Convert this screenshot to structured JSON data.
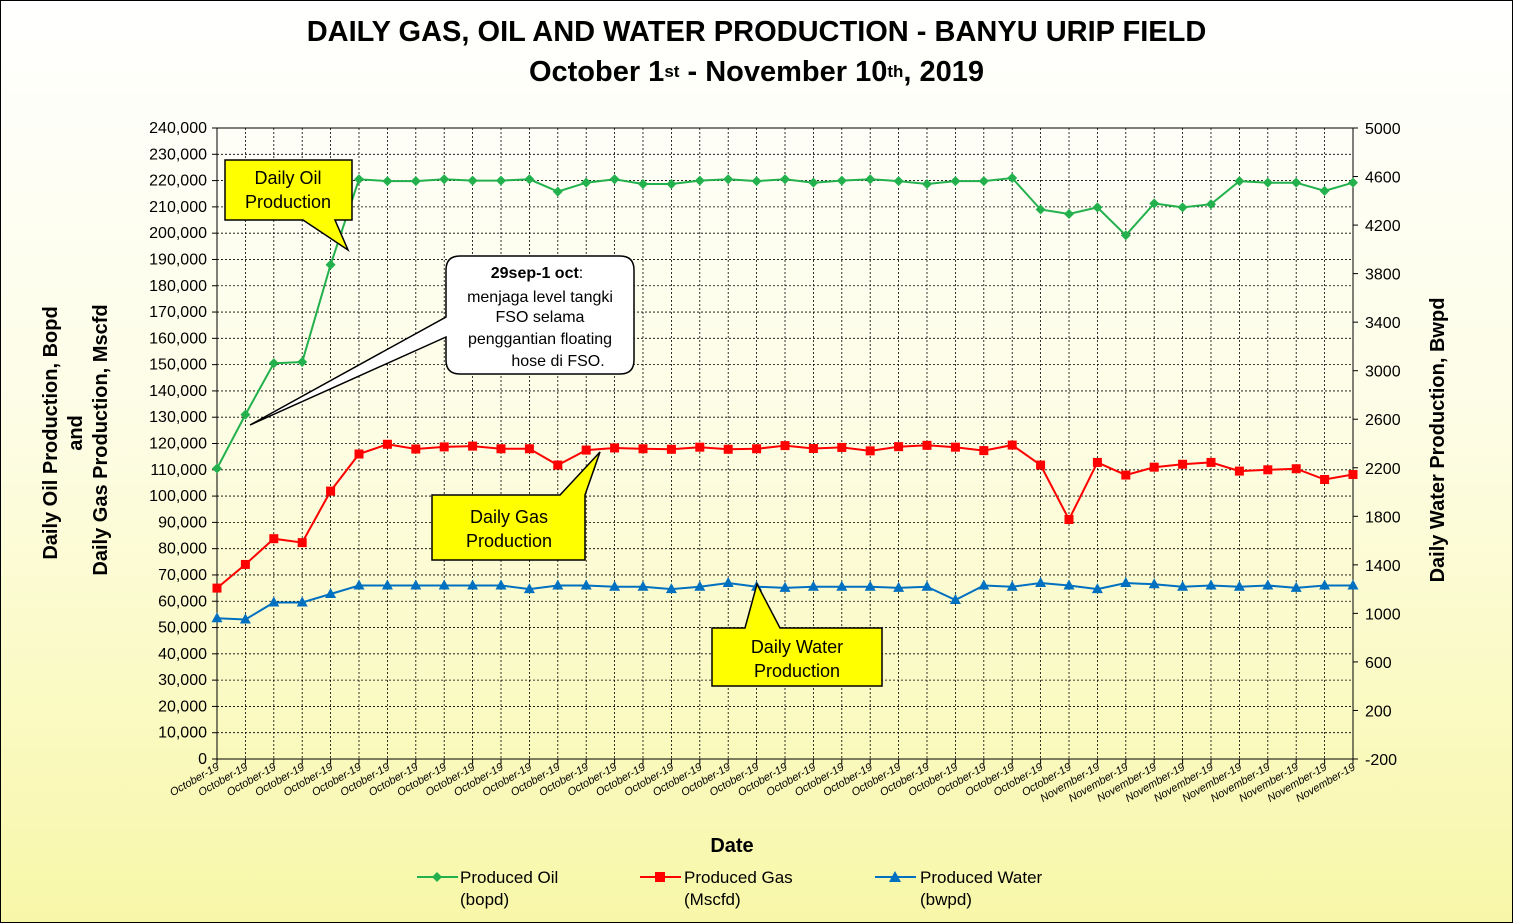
{
  "title": {
    "line1": "DAILY  GAS, OIL AND WATER PRODUCTION - BANYU URIP FIELD",
    "line2_pre": "October 1",
    "line2_sup1": "st",
    "line2_mid": " - November 10",
    "line2_sup2": "th",
    "line2_post": ", 2019"
  },
  "chart_data": {
    "type": "line",
    "xlabel": "Date",
    "ylabel_left_line1": "Daily Oil Production, Bopd",
    "ylabel_left_line2": "and",
    "ylabel_left_line3": "Daily Gas Production, Mscfd",
    "ylabel_right": "Daily Water  Production, Bwpd",
    "ylim_left": [
      0,
      240000
    ],
    "ylim_right": [
      -200,
      5000
    ],
    "left_ticks": [
      "0",
      "10,000",
      "20,000",
      "30,000",
      "40,000",
      "50,000",
      "60,000",
      "70,000",
      "80,000",
      "90,000",
      "100,000",
      "110,000",
      "120,000",
      "130,000",
      "140,000",
      "150,000",
      "160,000",
      "170,000",
      "180,000",
      "190,000",
      "200,000",
      "210,000",
      "220,000",
      "230,000",
      "240,000"
    ],
    "right_ticks": [
      "-200",
      "200",
      "600",
      "1000",
      "1400",
      "1800",
      "2200",
      "2600",
      "3000",
      "3400",
      "3800",
      "4200",
      "4600",
      "5000"
    ],
    "grid": true,
    "legend_position": "bottom",
    "categories": [
      "October-19",
      "October-19",
      "October-19",
      "October-19",
      "October-19",
      "October-19",
      "October-19",
      "October-19",
      "October-19",
      "October-19",
      "October-19",
      "October-19",
      "October-19",
      "October-19",
      "October-19",
      "October-19",
      "October-19",
      "October-19",
      "October-19",
      "October-19",
      "October-19",
      "October-19",
      "October-19",
      "October-19",
      "October-19",
      "October-19",
      "October-19",
      "October-19",
      "October-19",
      "October-19",
      "October-19",
      "November-19",
      "November-19",
      "November-19",
      "November-19",
      "November-19",
      "November-19",
      "November-19",
      "November-19",
      "November-19",
      "November-19"
    ],
    "series": [
      {
        "name_line1": "Produced Oil",
        "name_line2": "(bopd)",
        "axis": "left",
        "color": "#22b14c",
        "marker": "diamond",
        "values": [
          110500,
          131000,
          150500,
          151000,
          188000,
          220500,
          219800,
          219800,
          220500,
          220000,
          220000,
          220500,
          215800,
          219200,
          220500,
          218700,
          218700,
          220000,
          220500,
          219800,
          220500,
          219200,
          220000,
          220500,
          219800,
          218700,
          219800,
          219800,
          221000,
          209000,
          207300,
          209800,
          199200,
          211300,
          209800,
          211000,
          219800,
          219200,
          219200,
          216100,
          219200
        ]
      },
      {
        "name_line1": "Produced Gas",
        "name_line2": "(Mscfd)",
        "axis": "left",
        "color": "#ff0000",
        "marker": "square",
        "values": [
          65000,
          74000,
          83800,
          82300,
          101900,
          116000,
          119700,
          117900,
          118700,
          119000,
          118000,
          118000,
          111800,
          117500,
          118300,
          118000,
          117800,
          118600,
          117800,
          118000,
          119200,
          118100,
          118500,
          117200,
          118800,
          119300,
          118600,
          117300,
          119400,
          111800,
          91100,
          112800,
          108000,
          111000,
          112100,
          112800,
          109500,
          110000,
          110400,
          106300,
          108200
        ]
      },
      {
        "name_line1": "Produced Water",
        "name_line2": "(bwpd)",
        "axis": "right",
        "color": "#0070c0",
        "marker": "triangle",
        "values": [
          960,
          950,
          1090,
          1090,
          1160,
          1230,
          1230,
          1230,
          1230,
          1230,
          1230,
          1200,
          1230,
          1230,
          1220,
          1220,
          1200,
          1220,
          1250,
          1220,
          1210,
          1220,
          1220,
          1220,
          1210,
          1220,
          1110,
          1230,
          1220,
          1250,
          1230,
          1200,
          1250,
          1240,
          1220,
          1230,
          1220,
          1230,
          1210,
          1230,
          1230
        ]
      }
    ]
  },
  "callouts": {
    "oil_line1": "Daily Oil",
    "oil_line2": "Production",
    "gas_line1": "Daily Gas",
    "gas_line2": "Production",
    "water_line1": "Daily Water",
    "water_line2": "Production",
    "note_bold": "29sep-1 oct",
    "note_colon": ":",
    "note_line2": "menjaga level tangki",
    "note_line3": "FSO selama",
    "note_line4": "penggantian floating",
    "note_line5": "hose di FSO."
  },
  "colors": {
    "callout_fill": "#ffff00",
    "note_fill": "#ffffff"
  }
}
